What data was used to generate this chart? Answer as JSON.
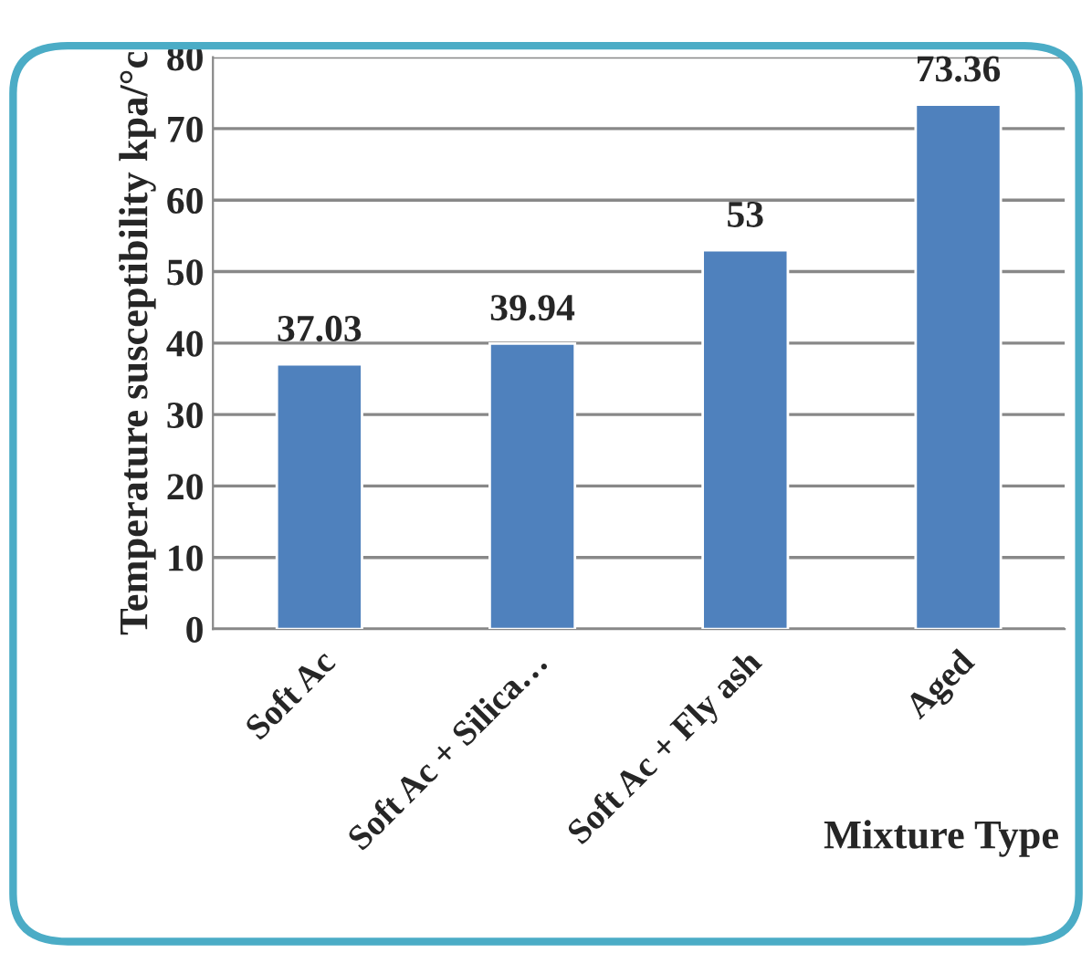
{
  "chart_data": {
    "type": "bar",
    "xlabel": "Mixture Type",
    "ylabel": "Temperature susceptibility kpa/°c",
    "categories": [
      "Soft Ac",
      "Soft Ac + Silica…",
      "Soft Ac + Fly ash",
      "Aged"
    ],
    "values": [
      37.03,
      39.94,
      53,
      73.36
    ],
    "color": "#4f81bd",
    "ylim": [
      0,
      80
    ],
    "yticks": [
      0,
      10,
      20,
      30,
      40,
      50,
      60,
      70,
      80
    ],
    "grid": "y",
    "data_labels": true
  }
}
